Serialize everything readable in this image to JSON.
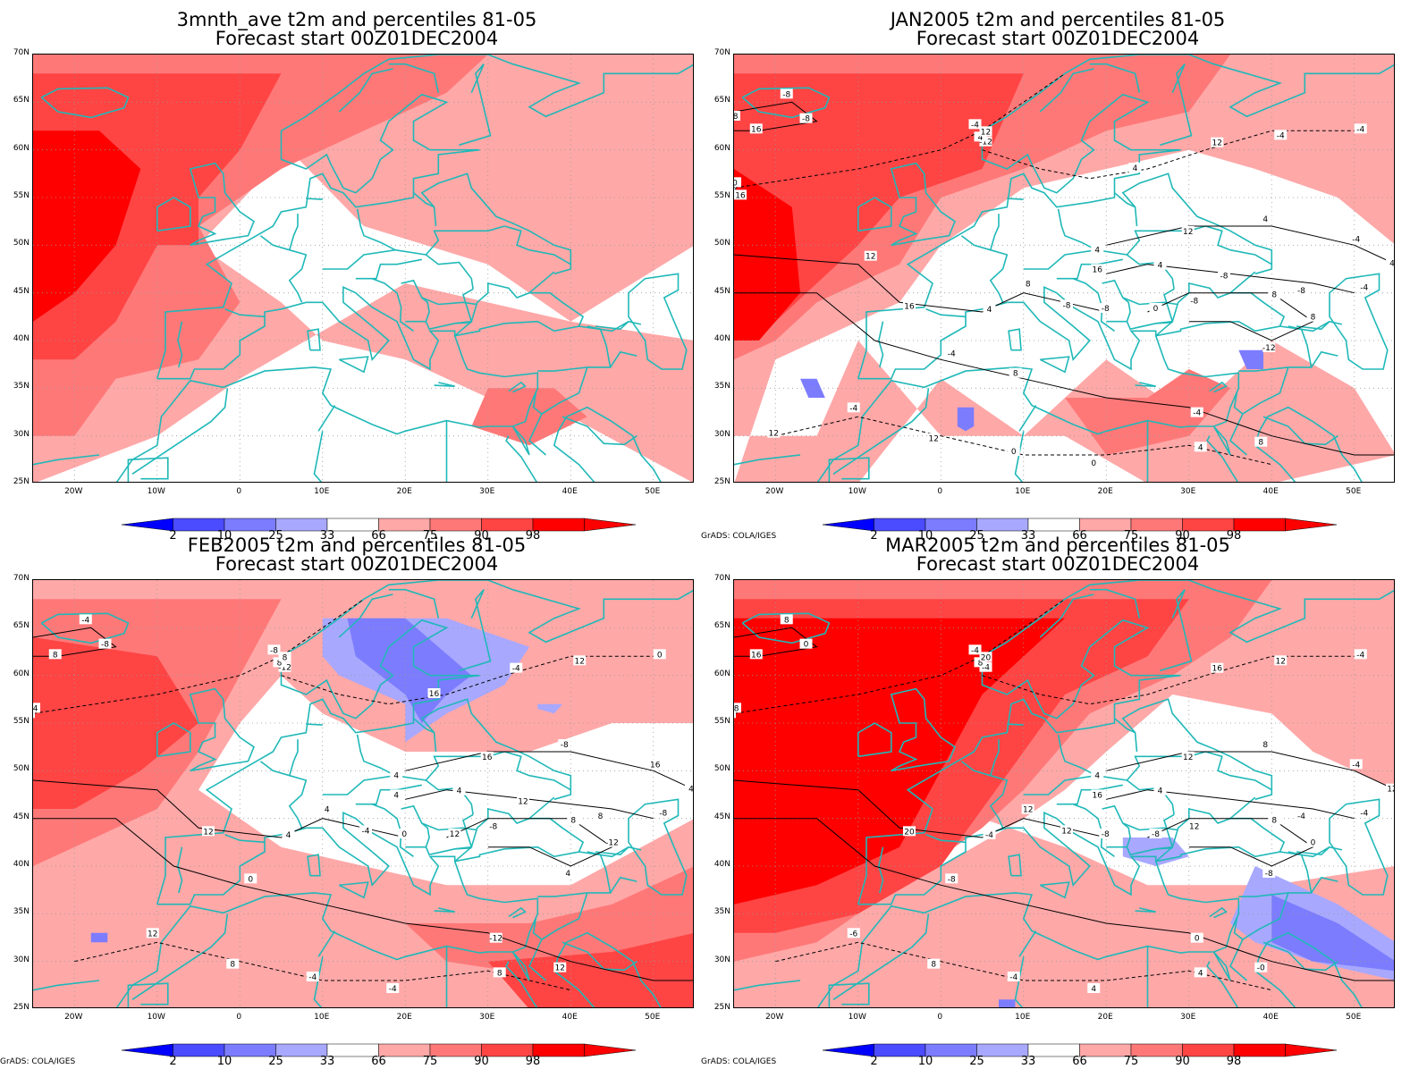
{
  "panels": [
    {
      "title_line1": "3mnth_ave t2m and percentiles 81-05",
      "title_line2": "Forecast start 00Z01DEC2004",
      "credit": "",
      "contours": []
    },
    {
      "title_line1": "JAN2005 t2m and percentiles 81-05",
      "title_line2": "Forecast start 00Z01DEC2004",
      "credit": "GrADS: COLA/IGES",
      "contours": [
        "-8",
        "-4",
        "-8",
        "0",
        "4",
        "4",
        "-12",
        "-12",
        "-4",
        "-8",
        "-16",
        "-8",
        "-4",
        "0",
        "4",
        "8",
        "-4",
        "4",
        "12",
        "4",
        "8",
        "-4",
        "0",
        "4",
        "8",
        "-4",
        "-8",
        "-8",
        "0",
        "4",
        "8",
        "12",
        "12",
        "-8",
        "12",
        "16",
        "16",
        "12",
        "16",
        "8",
        "-4",
        "-4",
        "0",
        "4",
        "-8",
        "-8",
        "16",
        "12",
        "8",
        "12"
      ]
    },
    {
      "title_line1": "FEB2005 t2m and percentiles 81-05",
      "title_line2": "Forecast start 00Z01DEC2004",
      "credit": "GrADS: COLA/IGES",
      "contours": [
        "-4",
        "-8",
        "0",
        "4",
        "8",
        "4",
        "4",
        "-12",
        "-8",
        "-8",
        "0",
        "-4",
        "-12",
        "-4",
        "-8",
        "-12",
        "0",
        "4",
        "-4",
        "8",
        "4",
        "0",
        "-4",
        "4",
        "8",
        "12",
        "8",
        "-4",
        "-4",
        "4",
        "0",
        "8",
        "16",
        "-8",
        "-4",
        "4",
        "8",
        "8",
        "12",
        "12",
        "12",
        "16",
        "12",
        "16",
        "12"
      ]
    },
    {
      "title_line1": "MAR2005 t2m and percentiles 81-05",
      "title_line2": "Forecast start 00Z01DEC2004",
      "credit": "GrADS: COLA/IGES",
      "contours": [
        "-8",
        "-4",
        "-8",
        "0",
        "4",
        "4",
        "-8",
        "-4",
        "-4",
        "0",
        "8",
        "12",
        "0",
        "4",
        "8",
        "0",
        "-4",
        "4",
        "8",
        "8",
        "12",
        "-8",
        "-4",
        "12",
        "8",
        "12",
        "-4",
        "8",
        "-8",
        "-4",
        "4",
        "8",
        "12",
        "12",
        "16",
        "16",
        "16",
        "20",
        "20",
        "-0",
        "-6",
        "-4",
        "-8"
      ]
    }
  ],
  "map": {
    "lat_labels": [
      "70N",
      "65N",
      "60N",
      "55N",
      "50N",
      "45N",
      "40N",
      "35N",
      "30N",
      "25N"
    ],
    "lon_labels": [
      "20W",
      "10W",
      "0",
      "10E",
      "20E",
      "30E",
      "40E",
      "50E"
    ]
  },
  "legend": {
    "percentile_labels": [
      "2",
      "10",
      "25",
      "33",
      "66",
      "75",
      "90",
      "98"
    ],
    "colors": [
      "#0000ff",
      "#4b4bff",
      "#7c7cff",
      "#a8a8ff",
      "#ffffff",
      "#ffa8a8",
      "#ff7878",
      "#ff4444",
      "#ff0000",
      "#ff0000"
    ]
  },
  "colors": {
    "coast": "#20b8b8",
    "contour": "#000000",
    "grid": "#999999"
  }
}
